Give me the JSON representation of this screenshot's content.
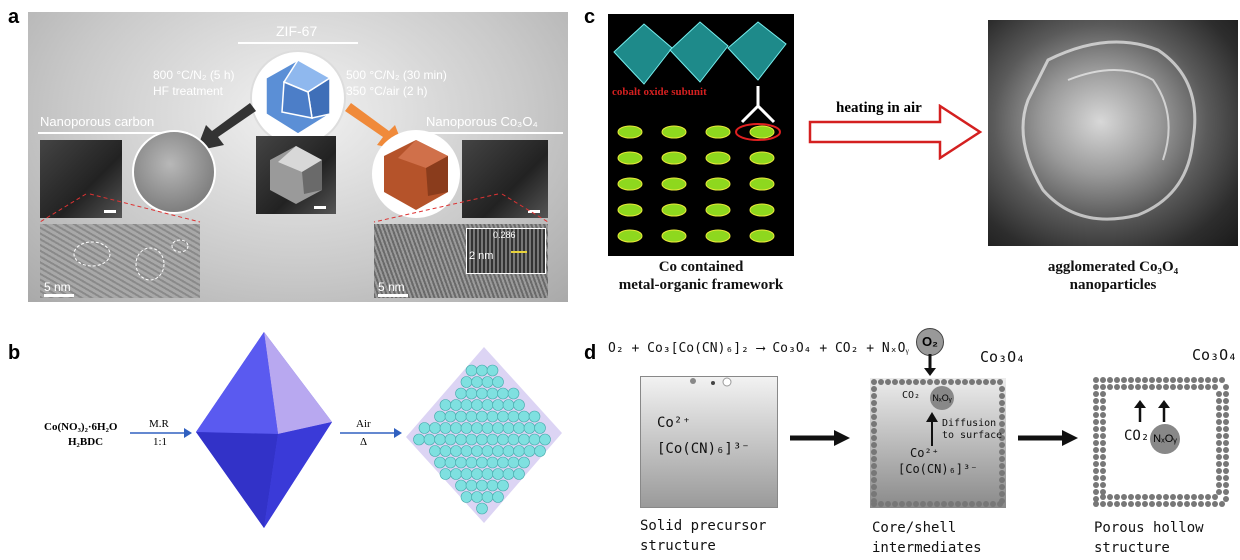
{
  "panels": {
    "a": {
      "label": "a",
      "zif_title": "ZIF-67",
      "left_conditions": [
        "800 °C/N₂ (5 h)",
        "HF treatment"
      ],
      "right_conditions": [
        "500 °C/N₂ (30 min)",
        "350 °C/air (2 h)"
      ],
      "left_product": "Nanoporous carbon",
      "right_product": "Nanoporous Co₃O₄",
      "scale_left": "5 nm",
      "scale_right": "5 nm",
      "scale_inset": "2 nm",
      "inset_lattice": "0.286"
    },
    "b": {
      "label": "b",
      "reactant_1": "Co(NO₃)₂·6H₂O",
      "reactant_2": "H₂BDC",
      "step1_top": "M.R",
      "step1_bottom": "1:1",
      "step2_top": "Air",
      "step2_bottom": "Δ"
    },
    "c": {
      "label": "c",
      "subunit_label": "cobalt oxide subunit",
      "arrow_label": "heating in air",
      "left_caption_1": "Co contained",
      "left_caption_2": "metal-organic framework",
      "right_caption_1": "agglomerated Co₃O₄",
      "right_caption_2": "nanoparticles"
    },
    "d": {
      "label": "d",
      "equation": "O₂ + Co₃[Co(CN)₆]₂ ⟶ Co₃O₄ + CO₂ + NₓOᵧ",
      "o2_bubble": "O₂",
      "co3o4_mid": "Co₃O₄",
      "co3o4_right": "Co₃O₄",
      "co2_mid": "CO₂",
      "nxoy_mid": "NₓOᵧ",
      "diffusion_1": "Diffusion",
      "diffusion_2": "to surface",
      "co2_plus_1": "Co²⁺",
      "complex_1": "[Co(CN)₆]³⁻",
      "co2_plus_2": "Co²⁺",
      "complex_2": "[Co(CN)₆]³⁻",
      "co2_right": "CO₂",
      "nxoy_right": "NₓOᵧ",
      "caption_1a": "Solid precursor",
      "caption_1b": "structure",
      "caption_2a": "Core/shell",
      "caption_2b": "intermediates",
      "caption_3a": "Porous hollow",
      "caption_3b": "structure"
    }
  },
  "colors": {
    "zif_blue": "#5b8fd6",
    "co3o4_orange": "#b5532a",
    "octahedron": "#4a4ae6",
    "sphere": "#7fe0e0",
    "arrow_red": "#d42020",
    "arrow_blue": "#3060c0"
  }
}
